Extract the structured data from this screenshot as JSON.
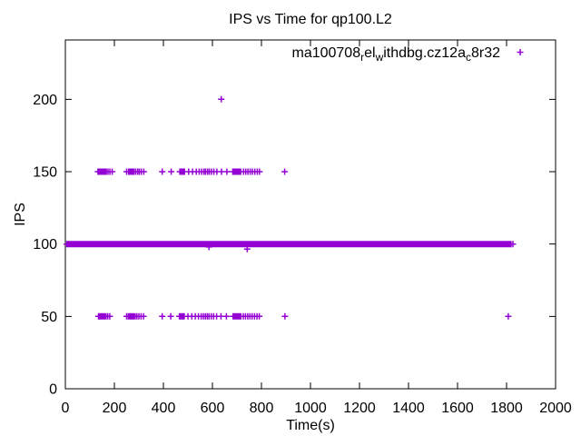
{
  "window": {
    "background": "#ffffff"
  },
  "chart_data": {
    "type": "scatter",
    "title": "IPS vs Time for qp100.L2",
    "xlabel": "Time(s)",
    "ylabel": "IPS",
    "xlim": [
      0,
      2000
    ],
    "ylim": [
      0,
      241
    ],
    "xticks": [
      0,
      200,
      400,
      600,
      800,
      1000,
      1200,
      1400,
      1600,
      1800,
      2000
    ],
    "yticks": [
      0,
      50,
      100,
      150,
      200
    ],
    "grid": false,
    "legend_position": "top-right-inside",
    "marker": "plus",
    "marker_color": "#9400D3",
    "axis_color": "#000000",
    "series": [
      {
        "name": "ma100708_rel_withdbg.cz12a_c8r32",
        "name_display_segments": [
          {
            "text": "ma100708"
          },
          {
            "text": "r",
            "sub": true
          },
          {
            "text": "el"
          },
          {
            "text": "w",
            "sub": true
          },
          {
            "text": "ithdbg.cz12a"
          },
          {
            "text": "c",
            "sub": true
          },
          {
            "text": "8r32"
          }
        ],
        "color": "#9400D3",
        "dense_band_y100": {
          "y": 100,
          "x_start": 6,
          "x_end": 1818,
          "x_step": 4
        },
        "points_y150_x": [
          133,
          136,
          139,
          142,
          145,
          148,
          151,
          154,
          158,
          162,
          167,
          174,
          182,
          191,
          250,
          258,
          263,
          267,
          271,
          275,
          280,
          287,
          295,
          302,
          310,
          320,
          395,
          432,
          467,
          470,
          473,
          476,
          479,
          482,
          486,
          503,
          519,
          534,
          546,
          556,
          565,
          572,
          580,
          587,
          596,
          606,
          618,
          637,
          659,
          683,
          687,
          691,
          695,
          699,
          703,
          707,
          711,
          715,
          727,
          736,
          745,
          754,
          763,
          773,
          783,
          792,
          895
        ],
        "points_y50_x": [
          135,
          139,
          143,
          147,
          151,
          155,
          160,
          166,
          173,
          181,
          250,
          257,
          262,
          266,
          270,
          274,
          279,
          285,
          292,
          300,
          309,
          319,
          395,
          430,
          465,
          469,
          473,
          477,
          481,
          485,
          500,
          516,
          530,
          543,
          554,
          563,
          571,
          579,
          586,
          595,
          605,
          617,
          635,
          657,
          684,
          688,
          692,
          696,
          700,
          704,
          708,
          712,
          716,
          726,
          735,
          744,
          753,
          762,
          772,
          782,
          791,
          896,
          1807
        ],
        "extra_points": [
          {
            "x": 636,
            "y": 200
          },
          {
            "x": 586,
            "y": 98
          },
          {
            "x": 742,
            "y": 96.5
          },
          {
            "x": 1826,
            "y": 100
          }
        ]
      }
    ]
  },
  "layout_note": "single gnuplot-style scatter plot, ticks mirrored on all four borders"
}
